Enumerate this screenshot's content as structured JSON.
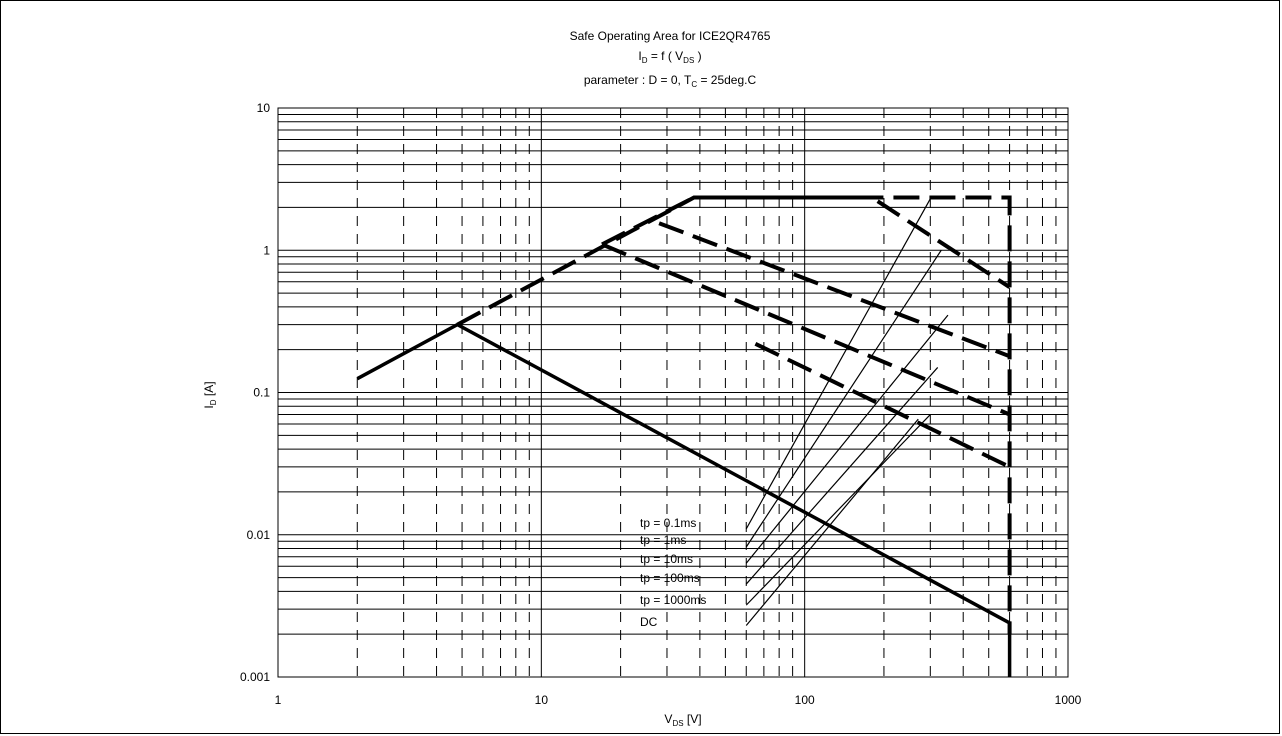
{
  "chart_data": {
    "type": "line",
    "title": "Safe Operating Area for ICE2QR4765",
    "subtitle": {
      "main": "I",
      "main_sub": "D",
      "mid": " = f ( V",
      "mid_sub": "DS",
      "end": " )"
    },
    "parameter": {
      "pre": "parameter : D = 0, T",
      "sub": "C",
      "post": " = 25deg.C"
    },
    "xlabel": {
      "main": "V",
      "sub": "DS",
      "rest": " [V]"
    },
    "ylabel": {
      "main": "I",
      "sub": "D",
      "rest": " [A]"
    },
    "x_scale": "log",
    "y_scale": "log",
    "xlim": [
      1,
      1000
    ],
    "ylim": [
      0.001,
      10
    ],
    "x_ticks": [
      "1",
      "10",
      "100",
      "1000"
    ],
    "y_ticks": [
      "0.001",
      "0.01",
      "0.1",
      "1",
      "10"
    ],
    "grid": true,
    "series": [
      {
        "name": "tp = 0.1ms",
        "style": "dashed",
        "points": [
          [
            4.8,
            0.3
          ],
          [
            38,
            2.35
          ],
          [
            600,
            2.35
          ],
          [
            600,
            0.002
          ]
        ]
      },
      {
        "name": "tp = 1ms",
        "style": "dashed",
        "points": [
          [
            17,
            1.1
          ],
          [
            38,
            2.35
          ],
          [
            180,
            2.35
          ],
          [
            600,
            0.55
          ]
        ]
      },
      {
        "name": "tp = 10ms",
        "style": "dashed",
        "points": [
          [
            28,
            1.55
          ],
          [
            600,
            0.18
          ]
        ]
      },
      {
        "name": "tp = 100ms",
        "style": "dashed",
        "points": [
          [
            17,
            1.1
          ],
          [
            600,
            0.07
          ]
        ]
      },
      {
        "name": "tp = 1000ms",
        "style": "dashed",
        "points": [
          [
            65,
            0.22
          ],
          [
            600,
            0.03
          ]
        ]
      },
      {
        "name": "DC",
        "style": "solid",
        "points": [
          [
            2,
            0.125
          ],
          [
            4.8,
            0.3
          ],
          [
            600,
            0.0024
          ],
          [
            600,
            0.001
          ]
        ]
      }
    ],
    "legend_labels": [
      "tp = 0.1ms",
      "tp = 1ms",
      "tp = 10ms",
      "tp = 100ms",
      "tp = 1000ms",
      "DC"
    ],
    "legend_leaders": [
      [
        [
          60,
          0.011
        ],
        [
          300,
          2.3
        ]
      ],
      [
        [
          60,
          0.0082
        ],
        [
          330,
          1.0
        ]
      ],
      [
        [
          60,
          0.0063
        ],
        [
          350,
          0.35
        ]
      ],
      [
        [
          60,
          0.0045
        ],
        [
          320,
          0.15
        ]
      ],
      [
        [
          60,
          0.0032
        ],
        [
          300,
          0.07
        ]
      ],
      [
        [
          60,
          0.0023
        ],
        [
          270,
          0.065
        ]
      ]
    ]
  }
}
